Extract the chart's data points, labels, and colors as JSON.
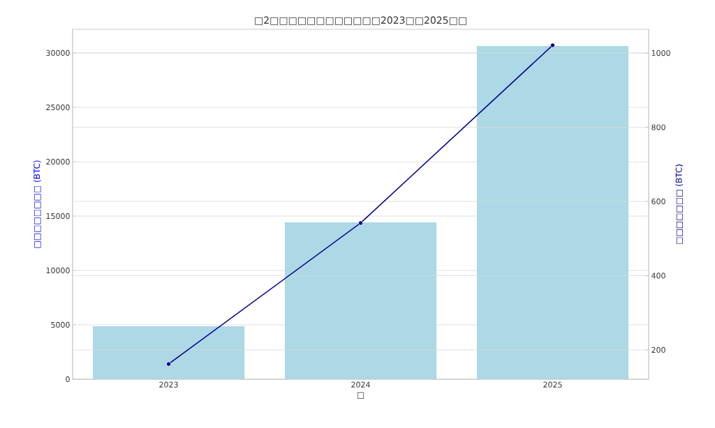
{
  "chart_data": {
    "type": "bar",
    "title": "□2□□□□□□□□□□□□2023□□2025□□",
    "xlabel": "□",
    "ylabel": "□□□□□□□□ (BTC)",
    "y2label": "□□□□□□□ (BTC)",
    "categories": [
      "2023",
      "2024",
      "2025"
    ],
    "series": [
      {
        "color": "#add8e6",
        "values": [
          4870,
          14420,
          30640
        ]
      },
      {
        "type": "line",
        "axis": "y2",
        "color": "#00008b",
        "marker": "circle",
        "values": [
          162,
          542,
          1021
        ]
      }
    ],
    "ylim": [
      0,
      32180
    ],
    "yticks": [
      0,
      5000,
      10000,
      15000,
      20000,
      25000,
      30000
    ],
    "y2lim": [
      121,
      1064
    ],
    "y2ticks": [
      200,
      400,
      600,
      800,
      1000
    ],
    "grid": true
  }
}
